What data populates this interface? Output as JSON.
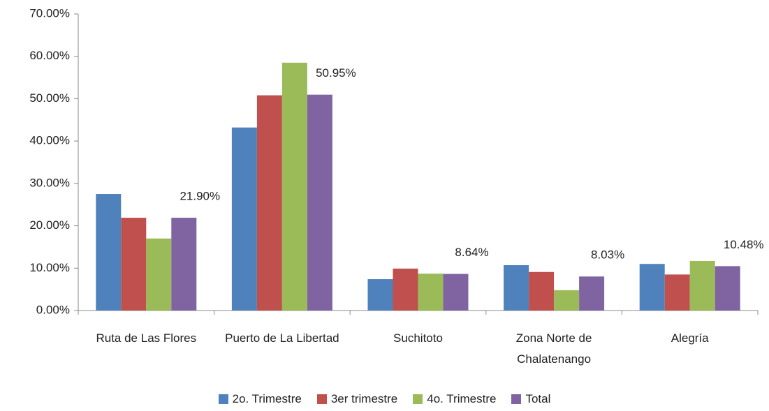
{
  "chart_data": {
    "type": "bar",
    "categories": [
      "Ruta de Las Flores",
      "Puerto de La Libertad",
      "Suchitoto",
      "Zona Norte de Chalatenango",
      "Alegría"
    ],
    "series": [
      {
        "name": "2o. Trimestre",
        "color": "#4f81bd",
        "values": [
          27.5,
          43.2,
          7.4,
          10.7,
          11.0
        ]
      },
      {
        "name": "3er trimestre",
        "color": "#c0504d",
        "values": [
          21.9,
          50.8,
          9.9,
          9.1,
          8.5
        ]
      },
      {
        "name": "4o. Trimestre",
        "color": "#9bbb59",
        "values": [
          17.0,
          58.5,
          8.7,
          4.8,
          11.7
        ]
      },
      {
        "name": "Total",
        "color": "#8064a2",
        "values": [
          21.9,
          50.95,
          8.64,
          8.03,
          10.48
        ],
        "value_labels": [
          "21.90%",
          "50.95%",
          "8.64%",
          "8.03%",
          "10.48%"
        ]
      }
    ],
    "ylim": [
      0,
      70
    ],
    "yticks": [
      {
        "value": 0,
        "label": "0.00%"
      },
      {
        "value": 10,
        "label": "10.00%"
      },
      {
        "value": 20,
        "label": "20.00%"
      },
      {
        "value": 30,
        "label": "30.00%"
      },
      {
        "value": 40,
        "label": "40.00%"
      },
      {
        "value": 50,
        "label": "50.00%"
      },
      {
        "value": 60,
        "label": "60.00%"
      },
      {
        "value": 70,
        "label": "70.00%"
      }
    ],
    "grid": false,
    "legend": "bottom"
  }
}
